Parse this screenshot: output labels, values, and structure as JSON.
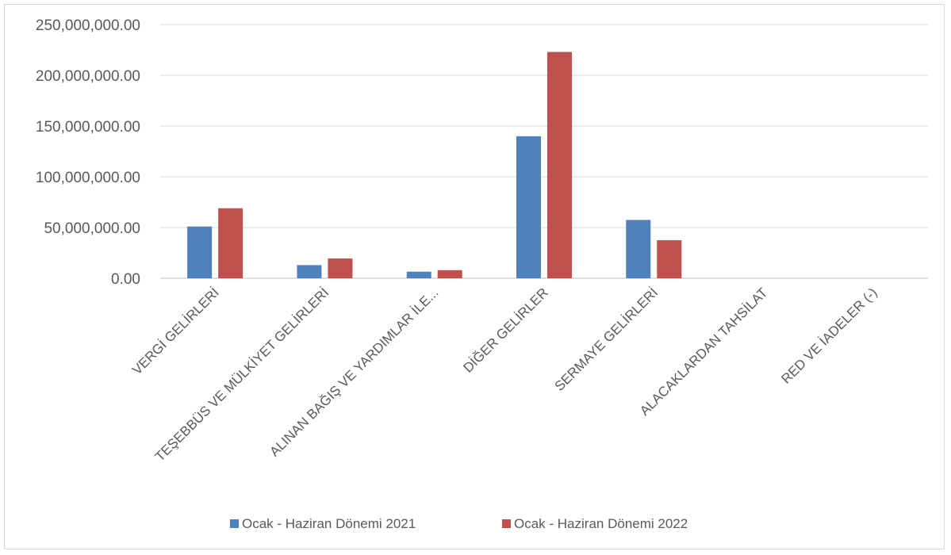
{
  "chart_data": {
    "type": "bar",
    "categories": [
      "VERGİ GELİRLERİ",
      "TEŞEBBÜS VE MÜLKİYET GELİRLERİ",
      "ALINAN BAĞIŞ VE YARDIMLAR İLE...",
      "DİĞER GELİRLER",
      "SERMAYE GELİRLERİ",
      "ALACAKLARDAN TAHSİLAT",
      "RED VE İADELER (-)"
    ],
    "series": [
      {
        "name": "Ocak - Haziran Dönemi 2021",
        "color": "#4f81bd",
        "values": [
          51000000,
          13000000,
          6500000,
          140000000,
          57500000,
          0,
          0
        ]
      },
      {
        "name": "Ocak - Haziran Dönemi 2022",
        "color": "#c0504d",
        "values": [
          69000000,
          19500000,
          8000000,
          223000000,
          37500000,
          0,
          0
        ]
      }
    ],
    "yticks": [
      "0.00",
      "50,000,000.00",
      "100,000,000.00",
      "150,000,000.00",
      "200,000,000.00",
      "250,000,000.00"
    ],
    "ylim": [
      0,
      250000000
    ],
    "grid": true,
    "legend_position": "bottom"
  }
}
